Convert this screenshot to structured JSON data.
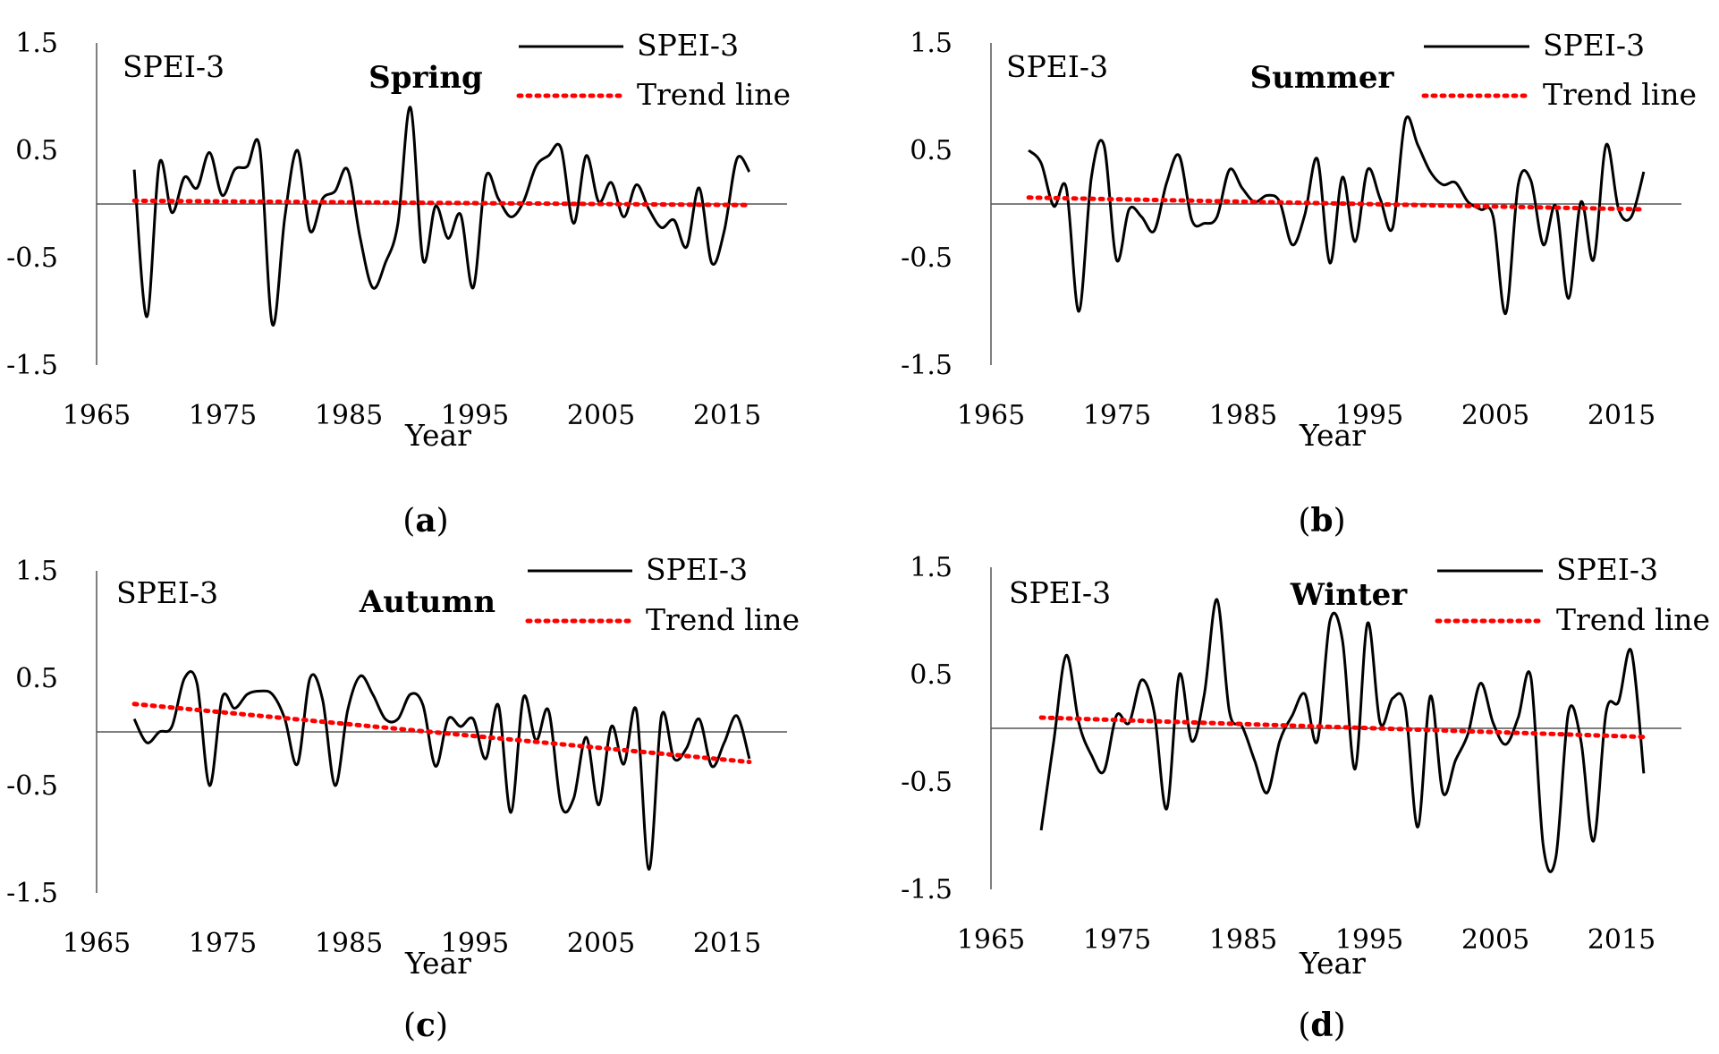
{
  "figure_caption_labels": [
    "a",
    "b",
    "c",
    "d"
  ],
  "colors": {
    "series": "#000000",
    "trend": "#ff0000",
    "axis": "#555555"
  },
  "chart_data": [
    {
      "type": "line",
      "panel_label": "a",
      "title": "Spring",
      "tag": "SPEI-3",
      "xlabel": "Year",
      "ylabel": "",
      "xlim": [
        1965,
        2020
      ],
      "ylim": [
        -1.5,
        1.5
      ],
      "x_ticks": [
        "1965",
        "1975",
        "1985",
        "1995",
        "2005",
        "2015"
      ],
      "y_ticks": [
        "1.5",
        "0.5",
        "-0.5",
        "-1.5"
      ],
      "legend": [
        "SPEI-3",
        "Trend line"
      ],
      "x": [
        1968,
        1969,
        1970,
        1971,
        1972,
        1973,
        1974,
        1975,
        1976,
        1977,
        1978,
        1979,
        1980,
        1981,
        1982,
        1983,
        1984,
        1985,
        1986,
        1987,
        1988,
        1989,
        1990,
        1991,
        1992,
        1993,
        1994,
        1995,
        1996,
        1997,
        1998,
        1999,
        2000,
        2001,
        2002,
        2003,
        2004,
        2005,
        2006,
        2007,
        2008,
        2009,
        2010,
        2011,
        2012,
        2013,
        2014,
        2015,
        2016,
        2017
      ],
      "series": [
        {
          "name": "SPEI-3",
          "values": [
            0.32,
            -1.05,
            0.38,
            -0.08,
            0.25,
            0.15,
            0.48,
            0.08,
            0.32,
            0.35,
            0.52,
            -1.12,
            -0.12,
            0.5,
            -0.25,
            0.05,
            0.12,
            0.32,
            -0.32,
            -0.78,
            -0.55,
            -0.18,
            0.9,
            -0.52,
            -0.02,
            -0.32,
            -0.1,
            -0.78,
            0.25,
            0.05,
            -0.12,
            0.02,
            0.35,
            0.45,
            0.52,
            -0.18,
            0.45,
            0.02,
            0.2,
            -0.12,
            0.18,
            -0.05,
            -0.22,
            -0.15,
            -0.4,
            0.15,
            -0.55,
            -0.25,
            0.42,
            0.3
          ]
        },
        {
          "name": "Trend line",
          "values_start_end": [
            0.03,
            -0.01
          ]
        }
      ]
    },
    {
      "type": "line",
      "panel_label": "b",
      "title": "Summer",
      "tag": "SPEI-3",
      "xlabel": "Year",
      "ylabel": "",
      "xlim": [
        1965,
        2020
      ],
      "ylim": [
        -1.5,
        1.5
      ],
      "x_ticks": [
        "1965",
        "1975",
        "1985",
        "1995",
        "2005",
        "2015"
      ],
      "y_ticks": [
        "1.5",
        "0.5",
        "-0.5",
        "-1.5"
      ],
      "legend": [
        "SPEI-3",
        "Trend line"
      ],
      "x": [
        1968,
        1969,
        1970,
        1971,
        1972,
        1973,
        1974,
        1975,
        1976,
        1977,
        1978,
        1979,
        1980,
        1981,
        1982,
        1983,
        1984,
        1985,
        1986,
        1987,
        1988,
        1989,
        1990,
        1991,
        1992,
        1993,
        1994,
        1995,
        1996,
        1997,
        1998,
        1999,
        2000,
        2001,
        2002,
        2003,
        2004,
        2005,
        2006,
        2007,
        2008,
        2009,
        2010,
        2011,
        2012,
        2013,
        2014,
        2015,
        2016,
        2017
      ],
      "series": [
        {
          "name": "SPEI-3",
          "values": [
            0.5,
            0.38,
            -0.02,
            0.15,
            -1.0,
            0.25,
            0.55,
            -0.52,
            -0.05,
            -0.12,
            -0.25,
            0.2,
            0.45,
            -0.15,
            -0.18,
            -0.12,
            0.32,
            0.15,
            0.02,
            0.08,
            0.02,
            -0.38,
            -0.1,
            0.42,
            -0.55,
            0.25,
            -0.35,
            0.32,
            0.05,
            -0.22,
            0.78,
            0.55,
            0.3,
            0.18,
            0.2,
            0.02,
            -0.05,
            -0.12,
            -1.02,
            0.18,
            0.22,
            -0.38,
            -0.02,
            -0.88,
            0.02,
            -0.52,
            0.55,
            -0.05,
            -0.12,
            0.3
          ]
        },
        {
          "name": "Trend line",
          "values_start_end": [
            0.06,
            -0.05
          ]
        }
      ]
    },
    {
      "type": "line",
      "panel_label": "c",
      "title": "Autumn",
      "tag": "SPEI-3",
      "xlabel": "Year",
      "ylabel": "",
      "xlim": [
        1965,
        2020
      ],
      "ylim": [
        -1.5,
        1.5
      ],
      "x_ticks": [
        "1965",
        "1975",
        "1985",
        "1995",
        "2005",
        "2015"
      ],
      "y_ticks": [
        "1.5",
        "0.5",
        "-0.5",
        "-1.5"
      ],
      "legend": [
        "SPEI-3",
        "Trend line"
      ],
      "x": [
        1968,
        1969,
        1970,
        1971,
        1972,
        1973,
        1974,
        1975,
        1976,
        1977,
        1978,
        1979,
        1980,
        1981,
        1982,
        1983,
        1984,
        1985,
        1986,
        1987,
        1988,
        1989,
        1990,
        1991,
        1992,
        1993,
        1994,
        1995,
        1996,
        1997,
        1998,
        1999,
        2000,
        2001,
        2002,
        2003,
        2004,
        2005,
        2006,
        2007,
        2008,
        2009,
        2010,
        2011,
        2012,
        2013,
        2014,
        2015,
        2016,
        2017
      ],
      "series": [
        {
          "name": "SPEI-3",
          "values": [
            0.12,
            -0.1,
            0.0,
            0.05,
            0.5,
            0.45,
            -0.5,
            0.32,
            0.22,
            0.35,
            0.38,
            0.35,
            0.12,
            -0.3,
            0.5,
            0.3,
            -0.5,
            0.2,
            0.52,
            0.35,
            0.12,
            0.12,
            0.35,
            0.25,
            -0.32,
            0.12,
            0.05,
            0.12,
            -0.25,
            0.25,
            -0.75,
            0.32,
            -0.08,
            0.2,
            -0.68,
            -0.62,
            -0.05,
            -0.68,
            0.05,
            -0.3,
            0.2,
            -1.28,
            0.15,
            -0.25,
            -0.15,
            0.12,
            -0.32,
            -0.1,
            0.15,
            -0.25
          ]
        },
        {
          "name": "Trend line",
          "values_start_end": [
            0.26,
            -0.28
          ]
        }
      ]
    },
    {
      "type": "line",
      "panel_label": "d",
      "title": "Winter",
      "tag": "SPEI-3",
      "xlabel": "Year",
      "ylabel": "",
      "xlim": [
        1965,
        2020
      ],
      "ylim": [
        -1.5,
        1.5
      ],
      "x_ticks": [
        "1965",
        "1975",
        "1985",
        "1995",
        "2005",
        "2015"
      ],
      "y_ticks": [
        "1.5",
        "0.5",
        "-0.5",
        "-1.5"
      ],
      "legend": [
        "SPEI-3",
        "Trend line"
      ],
      "x": [
        1969,
        1970,
        1971,
        1972,
        1973,
        1974,
        1975,
        1976,
        1977,
        1978,
        1979,
        1980,
        1981,
        1982,
        1983,
        1984,
        1985,
        1986,
        1987,
        1988,
        1989,
        1990,
        1991,
        1992,
        1993,
        1994,
        1995,
        1996,
        1997,
        1998,
        1999,
        2000,
        2001,
        2002,
        2003,
        2004,
        2005,
        2006,
        2007,
        2008,
        2009,
        2010,
        2011,
        2012,
        2013,
        2014,
        2015,
        2016,
        2017
      ],
      "series": [
        {
          "name": "SPEI-3",
          "values": [
            -0.95,
            -0.12,
            0.68,
            0.05,
            -0.25,
            -0.4,
            0.12,
            0.05,
            0.45,
            0.15,
            -0.75,
            0.5,
            -0.12,
            0.32,
            1.2,
            0.15,
            0.02,
            -0.3,
            -0.6,
            -0.12,
            0.12,
            0.32,
            -0.12,
            1.0,
            0.82,
            -0.38,
            0.98,
            0.05,
            0.28,
            0.2,
            -0.92,
            0.3,
            -0.6,
            -0.3,
            -0.05,
            0.42,
            0.05,
            -0.15,
            0.1,
            0.48,
            -1.1,
            -1.2,
            0.15,
            -0.12,
            -1.05,
            0.15,
            0.25,
            0.72,
            -0.42
          ]
        },
        {
          "name": "Trend line",
          "values_start_end": [
            0.1,
            -0.08
          ]
        }
      ]
    }
  ]
}
